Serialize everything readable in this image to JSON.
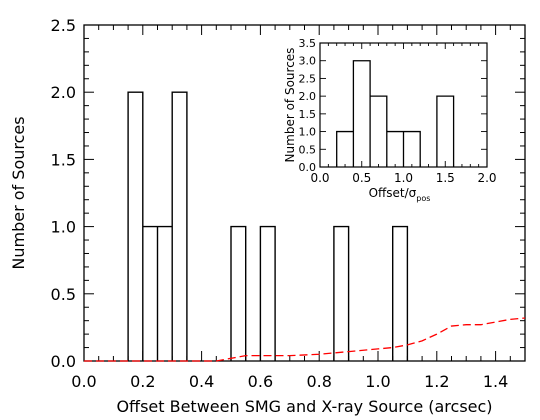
{
  "chart_data": [
    {
      "type": "histogram",
      "xlabel": "Offset Between SMG and X-ray Source (arcsec)",
      "ylabel": "Number of Sources",
      "xlim": [
        0.0,
        1.5
      ],
      "ylim": [
        0.0,
        2.5
      ],
      "x_ticks": [
        "0.0",
        "0.2",
        "0.4",
        "0.6",
        "0.8",
        "1.0",
        "1.2",
        "1.4"
      ],
      "y_ticks": [
        "0.0",
        "0.5",
        "1.0",
        "1.5",
        "2.0",
        "2.5"
      ],
      "x_tick_values": [
        0.0,
        0.2,
        0.4,
        0.6,
        0.8,
        1.0,
        1.2,
        1.4
      ],
      "y_tick_values": [
        0.0,
        0.5,
        1.0,
        1.5,
        2.0,
        2.5
      ],
      "bin_width": 0.05,
      "bins": [
        {
          "start": 0.15,
          "count": 2
        },
        {
          "start": 0.2,
          "count": 1
        },
        {
          "start": 0.25,
          "count": 1
        },
        {
          "start": 0.3,
          "count": 2
        },
        {
          "start": 0.5,
          "count": 1
        },
        {
          "start": 0.6,
          "count": 1
        },
        {
          "start": 0.85,
          "count": 1
        },
        {
          "start": 1.05,
          "count": 1
        }
      ],
      "series": [
        {
          "style": "dashed",
          "color": "#ff0000",
          "x": [
            0.0,
            0.1,
            0.2,
            0.3,
            0.45,
            0.5,
            0.55,
            0.6,
            0.7,
            0.8,
            0.9,
            1.0,
            1.05,
            1.1,
            1.15,
            1.2,
            1.25,
            1.3,
            1.35,
            1.4,
            1.45,
            1.5
          ],
          "y": [
            0.0,
            0.0,
            0.0,
            0.0,
            0.0,
            0.02,
            0.04,
            0.04,
            0.04,
            0.05,
            0.07,
            0.09,
            0.1,
            0.12,
            0.15,
            0.2,
            0.26,
            0.27,
            0.27,
            0.29,
            0.31,
            0.32
          ]
        }
      ]
    },
    {
      "type": "histogram",
      "inset": true,
      "xlabel_main": "Offset/σ",
      "xlabel_sub": "pos",
      "ylabel": "Number of Sources",
      "xlim": [
        0.0,
        2.0
      ],
      "ylim": [
        0.0,
        3.5
      ],
      "x_ticks": [
        "0.0",
        "0.5",
        "1.0",
        "1.5",
        "2.0"
      ],
      "y_ticks": [
        "0.0",
        "0.5",
        "1.0",
        "1.5",
        "2.0",
        "2.5",
        "3.0",
        "3.5"
      ],
      "x_tick_values": [
        0.0,
        0.5,
        1.0,
        1.5,
        2.0
      ],
      "y_tick_values": [
        0.0,
        0.5,
        1.0,
        1.5,
        2.0,
        2.5,
        3.0,
        3.5
      ],
      "bin_width": 0.2,
      "bins": [
        {
          "start": 0.2,
          "count": 1
        },
        {
          "start": 0.4,
          "count": 3
        },
        {
          "start": 0.6,
          "count": 2
        },
        {
          "start": 0.8,
          "count": 1
        },
        {
          "start": 1.0,
          "count": 1
        },
        {
          "start": 1.4,
          "count": 2
        }
      ]
    }
  ]
}
